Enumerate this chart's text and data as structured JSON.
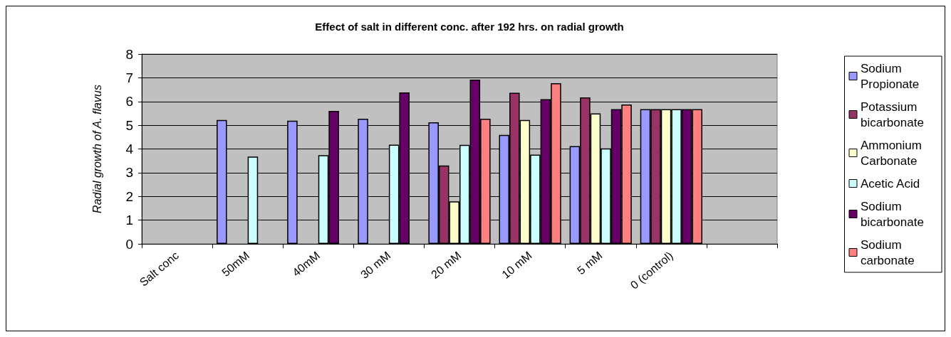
{
  "chart_data": {
    "type": "bar",
    "title": "Effect of salt in different conc. after 192 hrs. on radial growth",
    "ylabel": "Radial growth of A. flavus",
    "categories": [
      "Salt conc",
      "50mM",
      "40mM",
      "30 mM",
      "20 mM",
      "10 mM",
      "5 mM",
      "0 (control)",
      null
    ],
    "series": [
      {
        "name": "Sodium Propionate",
        "color": "#9999ff",
        "values": [
          null,
          5.22,
          5.19,
          5.27,
          5.12,
          4.59,
          4.12,
          5.68,
          null
        ]
      },
      {
        "name": "Potassium bicarbonate",
        "color": "#993366",
        "values": [
          null,
          0,
          0,
          0,
          3.3,
          6.37,
          6.17,
          5.68,
          null
        ]
      },
      {
        "name": "Ammonium Carbonate",
        "color": "#ffffcc",
        "values": [
          null,
          0,
          0,
          0,
          1.79,
          5.22,
          5.5,
          5.68,
          null
        ]
      },
      {
        "name": "Acetic Acid",
        "color": "#ccffff",
        "values": [
          null,
          3.68,
          3.74,
          4.18,
          4.17,
          3.76,
          4.02,
          5.68,
          null
        ]
      },
      {
        "name": "Sodium bicarbonate",
        "color": "#660066",
        "values": [
          null,
          0,
          5.6,
          6.38,
          6.92,
          6.1,
          5.68,
          5.68,
          null
        ]
      },
      {
        "name": "Sodium carbonate",
        "color": "#ff8080",
        "values": [
          null,
          0,
          0,
          0,
          5.27,
          6.77,
          5.87,
          5.68,
          null
        ]
      }
    ],
    "ylim": [
      0,
      8
    ],
    "yticks": [
      0,
      1,
      2,
      3,
      4,
      5,
      6,
      7,
      8
    ],
    "grid": "y",
    "legend": "right"
  }
}
